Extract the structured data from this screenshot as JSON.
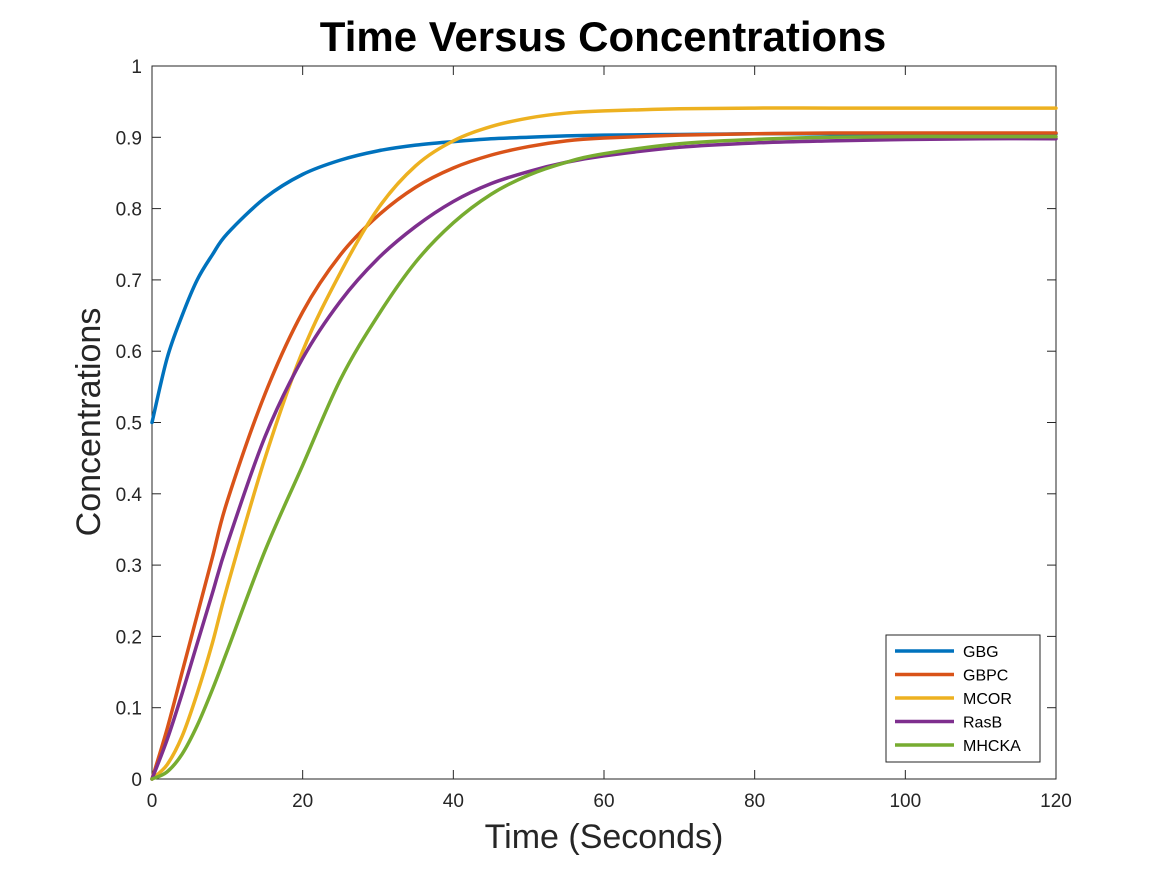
{
  "chart_data": {
    "type": "line",
    "title": "Time Versus Concentrations",
    "xlabel": "Time (Seconds)",
    "ylabel": "Concentrations",
    "xlim": [
      0,
      120
    ],
    "ylim": [
      0,
      1
    ],
    "xticks": [
      0,
      20,
      40,
      60,
      80,
      100,
      120
    ],
    "yticks": [
      0,
      0.1,
      0.2,
      0.3,
      0.4,
      0.5,
      0.6,
      0.7,
      0.8,
      0.9,
      1
    ],
    "ytick_labels": [
      "0",
      "0.1",
      "0.2",
      "0.3",
      "0.4",
      "0.5",
      "0.6",
      "0.7",
      "0.8",
      "0.9",
      "1"
    ],
    "grid": false,
    "legend_position": "bottom-right",
    "x": [
      0,
      2,
      4,
      6,
      8,
      10,
      15,
      20,
      25,
      30,
      35,
      40,
      45,
      50,
      55,
      60,
      70,
      80,
      90,
      100,
      110,
      120
    ],
    "series": [
      {
        "name": "GBG",
        "color": "#0072BD",
        "values": [
          0.5,
          0.59,
          0.65,
          0.7,
          0.735,
          0.765,
          0.815,
          0.848,
          0.868,
          0.881,
          0.889,
          0.894,
          0.898,
          0.9,
          0.902,
          0.903,
          0.904,
          0.905,
          0.905,
          0.905,
          0.905,
          0.905
        ]
      },
      {
        "name": "GBPC",
        "color": "#D95319",
        "values": [
          0,
          0.07,
          0.15,
          0.23,
          0.31,
          0.39,
          0.54,
          0.655,
          0.735,
          0.79,
          0.83,
          0.857,
          0.875,
          0.887,
          0.895,
          0.899,
          0.903,
          0.905,
          0.906,
          0.906,
          0.906,
          0.906
        ]
      },
      {
        "name": "MCOR",
        "color": "#EDB120",
        "values": [
          0,
          0.02,
          0.06,
          0.12,
          0.19,
          0.27,
          0.45,
          0.6,
          0.71,
          0.8,
          0.86,
          0.895,
          0.915,
          0.927,
          0.934,
          0.937,
          0.94,
          0.941,
          0.941,
          0.941,
          0.941,
          0.941
        ]
      },
      {
        "name": "RasB",
        "color": "#7E2F8E",
        "values": [
          0,
          0.055,
          0.12,
          0.19,
          0.26,
          0.33,
          0.48,
          0.59,
          0.67,
          0.73,
          0.775,
          0.81,
          0.835,
          0.852,
          0.865,
          0.874,
          0.886,
          0.892,
          0.895,
          0.897,
          0.898,
          0.898
        ]
      },
      {
        "name": "MHCKA",
        "color": "#77AC30",
        "values": [
          0,
          0.01,
          0.035,
          0.075,
          0.125,
          0.18,
          0.32,
          0.44,
          0.56,
          0.65,
          0.725,
          0.78,
          0.82,
          0.847,
          0.865,
          0.877,
          0.891,
          0.897,
          0.9,
          0.901,
          0.901,
          0.901
        ]
      }
    ]
  }
}
